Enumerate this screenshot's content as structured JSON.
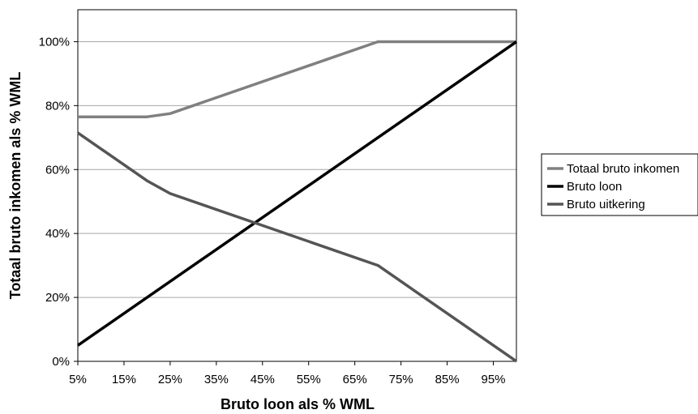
{
  "chart_data": {
    "type": "line",
    "title": "",
    "xlabel": "Bruto loon als % WML",
    "ylabel": "Totaal bruto inkomen als % WML",
    "x_tick_labels": [
      "5%",
      "15%",
      "25%",
      "35%",
      "45%",
      "55%",
      "65%",
      "75%",
      "85%",
      "95%"
    ],
    "y_tick_labels": [
      "0%",
      "20%",
      "40%",
      "60%",
      "80%",
      "100%"
    ],
    "xlim": [
      5,
      100
    ],
    "ylim": [
      0,
      110
    ],
    "grid": "horizontal",
    "legend_position": "right",
    "series": [
      {
        "name": "Totaal bruto inkomen",
        "color": "#808080",
        "x": [
          5,
          20,
          25,
          70,
          100
        ],
        "y": [
          76.5,
          76.5,
          77.5,
          100,
          100
        ]
      },
      {
        "name": "Bruto loon",
        "color": "#000000",
        "x": [
          5,
          100
        ],
        "y": [
          5,
          100
        ]
      },
      {
        "name": "Bruto uitkering",
        "color": "#555555",
        "x": [
          5,
          20,
          25,
          70,
          100
        ],
        "y": [
          71.5,
          56.5,
          52.5,
          30,
          0
        ]
      }
    ]
  }
}
